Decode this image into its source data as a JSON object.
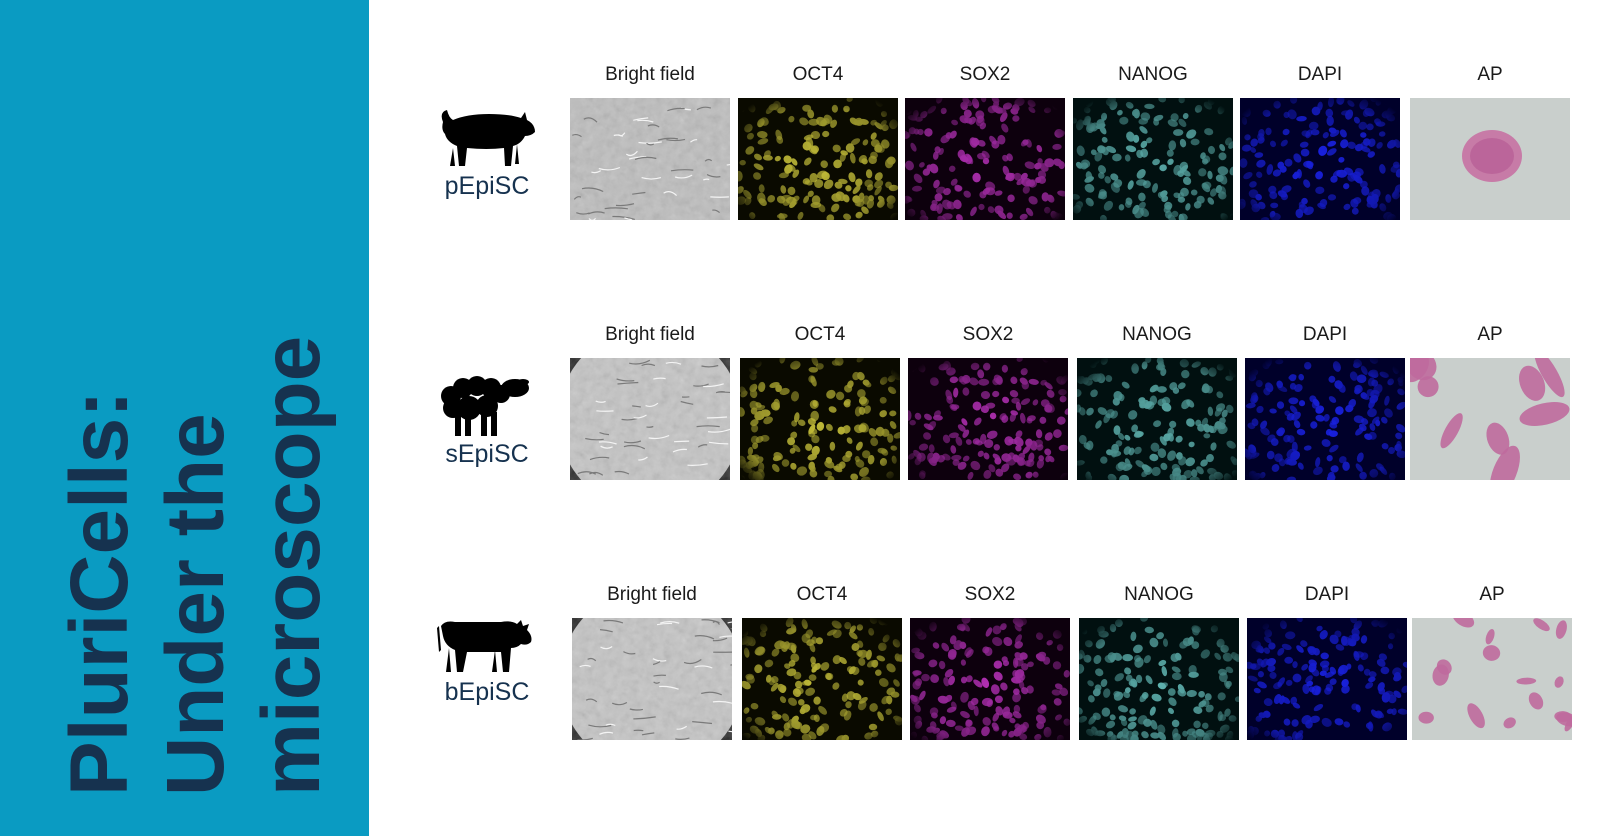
{
  "title": {
    "line1": "PluriCells:",
    "line2": "Under the",
    "line3": "microscope"
  },
  "colors": {
    "sidebar": "#0a9bc2",
    "title": "#16324f"
  },
  "columns": [
    "Bright field",
    "OCT4",
    "SOX2",
    "NANOG",
    "DAPI",
    "AP"
  ],
  "rows": [
    {
      "code": "pEpiSC",
      "animal": "pig-icon"
    },
    {
      "code": "sEpiSC",
      "animal": "sheep-icon"
    },
    {
      "code": "bEpiSC",
      "animal": "cow-icon"
    }
  ]
}
